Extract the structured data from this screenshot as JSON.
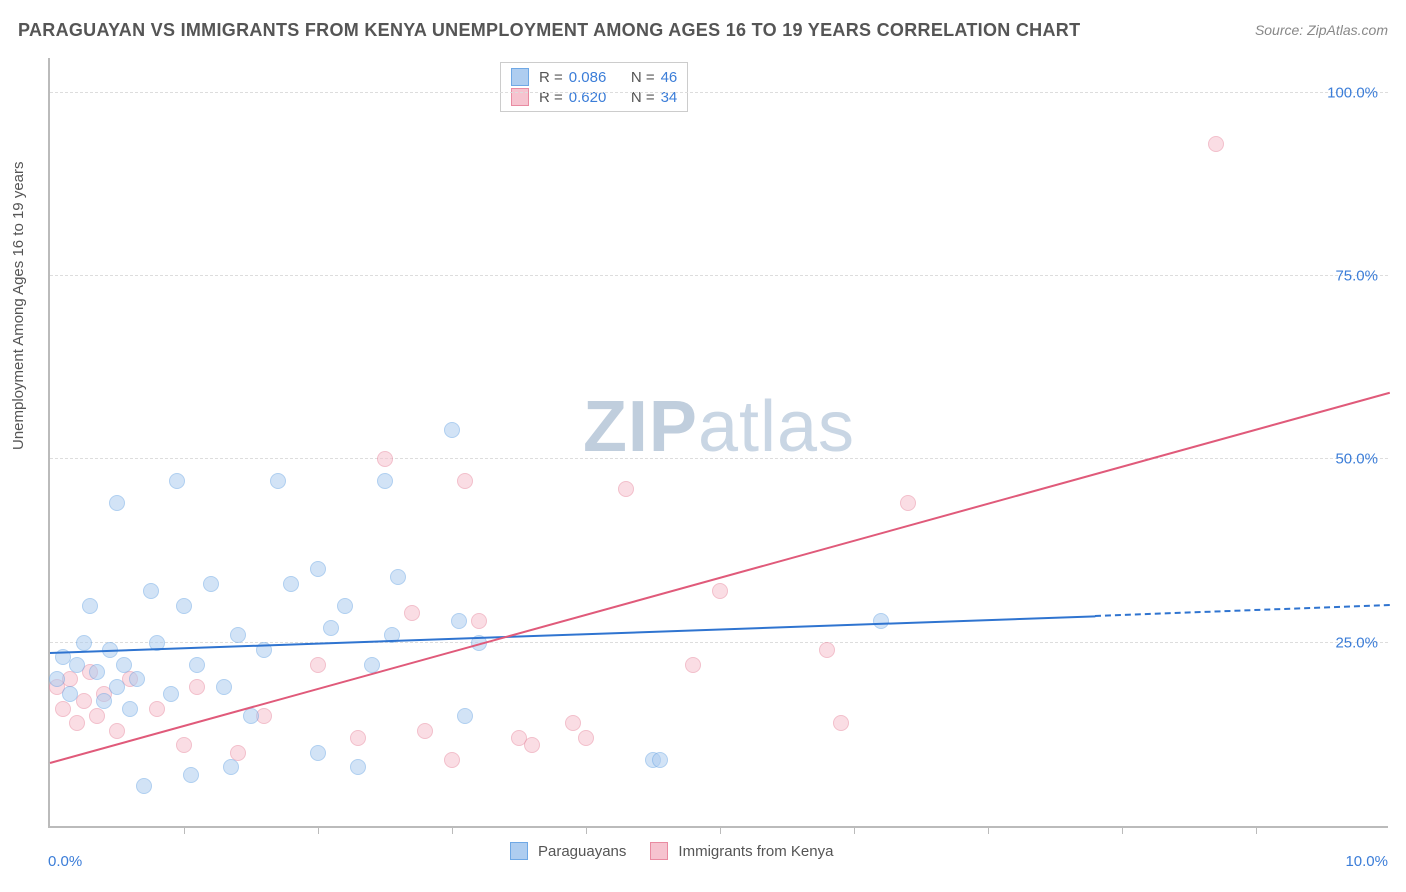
{
  "title": "PARAGUAYAN VS IMMIGRANTS FROM KENYA UNEMPLOYMENT AMONG AGES 16 TO 19 YEARS CORRELATION CHART",
  "source": "Source: ZipAtlas.com",
  "ylabel": "Unemployment Among Ages 16 to 19 years",
  "watermark_bold": "ZIP",
  "watermark_light": "atlas",
  "axes": {
    "xmin": 0,
    "xmax": 10,
    "ymin": 0,
    "ymax": 105,
    "xtick_label_min": "0.0%",
    "xtick_label_max": "10.0%",
    "yticks": [
      {
        "v": 25,
        "label": "25.0%"
      },
      {
        "v": 50,
        "label": "50.0%"
      },
      {
        "v": 75,
        "label": "75.0%"
      },
      {
        "v": 100,
        "label": "100.0%"
      }
    ],
    "xtick_positions": [
      1,
      2,
      3,
      4,
      5,
      6,
      7,
      8,
      9
    ],
    "grid_color": "#dddddd",
    "axis_color": "#bbbbbb"
  },
  "legend_top": [
    {
      "swatch_fill": "#aecdf0",
      "swatch_border": "#6fa8e5",
      "r_label": "R =",
      "r": "0.086",
      "n_label": "N =",
      "n": "46"
    },
    {
      "swatch_fill": "#f6c3cf",
      "swatch_border": "#e98ba1",
      "r_label": "R =",
      "r": "0.620",
      "n_label": "N =",
      "n": "34"
    }
  ],
  "legend_bottom": [
    {
      "swatch_fill": "#aecdf0",
      "swatch_border": "#6fa8e5",
      "label": "Paraguayans"
    },
    {
      "swatch_fill": "#f6c3cf",
      "swatch_border": "#e98ba1",
      "label": "Immigrants from Kenya"
    }
  ],
  "series": {
    "paraguayans": {
      "color_fill": "#aecdf0",
      "color_border": "#6fa8e5",
      "trend_color": "#2f74d0",
      "trend_start": {
        "x": 0.0,
        "y": 23.5
      },
      "trend_end_solid": {
        "x": 7.8,
        "y": 28.5
      },
      "trend_end_dashed": {
        "x": 10.0,
        "y": 30.0
      },
      "points": [
        {
          "x": 0.05,
          "y": 20
        },
        {
          "x": 0.1,
          "y": 23
        },
        {
          "x": 0.15,
          "y": 18
        },
        {
          "x": 0.2,
          "y": 22
        },
        {
          "x": 0.25,
          "y": 25
        },
        {
          "x": 0.3,
          "y": 30
        },
        {
          "x": 0.35,
          "y": 21
        },
        {
          "x": 0.4,
          "y": 17
        },
        {
          "x": 0.45,
          "y": 24
        },
        {
          "x": 0.5,
          "y": 19
        },
        {
          "x": 0.5,
          "y": 44
        },
        {
          "x": 0.55,
          "y": 22
        },
        {
          "x": 0.6,
          "y": 16
        },
        {
          "x": 0.65,
          "y": 20
        },
        {
          "x": 0.7,
          "y": 5.5
        },
        {
          "x": 0.75,
          "y": 32
        },
        {
          "x": 0.8,
          "y": 25
        },
        {
          "x": 0.9,
          "y": 18
        },
        {
          "x": 0.95,
          "y": 47
        },
        {
          "x": 1.0,
          "y": 30
        },
        {
          "x": 1.05,
          "y": 7
        },
        {
          "x": 1.1,
          "y": 22
        },
        {
          "x": 1.2,
          "y": 33
        },
        {
          "x": 1.3,
          "y": 19
        },
        {
          "x": 1.35,
          "y": 8
        },
        {
          "x": 1.5,
          "y": 15
        },
        {
          "x": 1.6,
          "y": 24
        },
        {
          "x": 1.7,
          "y": 47
        },
        {
          "x": 1.8,
          "y": 33
        },
        {
          "x": 2.0,
          "y": 10
        },
        {
          "x": 2.1,
          "y": 27
        },
        {
          "x": 2.2,
          "y": 30
        },
        {
          "x": 2.3,
          "y": 8
        },
        {
          "x": 2.4,
          "y": 22
        },
        {
          "x": 2.5,
          "y": 47
        },
        {
          "x": 2.55,
          "y": 26
        },
        {
          "x": 2.6,
          "y": 34
        },
        {
          "x": 3.0,
          "y": 54
        },
        {
          "x": 3.05,
          "y": 28
        },
        {
          "x": 3.1,
          "y": 15
        },
        {
          "x": 3.2,
          "y": 25
        },
        {
          "x": 4.5,
          "y": 9
        },
        {
          "x": 4.55,
          "y": 9
        },
        {
          "x": 6.2,
          "y": 28
        },
        {
          "x": 2.0,
          "y": 35
        },
        {
          "x": 1.4,
          "y": 26
        }
      ]
    },
    "kenya": {
      "color_fill": "#f6c3cf",
      "color_border": "#e98ba1",
      "trend_color": "#e05a7a",
      "trend_start": {
        "x": 0.0,
        "y": 8.5
      },
      "trend_end_solid": {
        "x": 10.0,
        "y": 59.0
      },
      "points": [
        {
          "x": 0.05,
          "y": 19
        },
        {
          "x": 0.1,
          "y": 16
        },
        {
          "x": 0.15,
          "y": 20
        },
        {
          "x": 0.2,
          "y": 14
        },
        {
          "x": 0.25,
          "y": 17
        },
        {
          "x": 0.3,
          "y": 21
        },
        {
          "x": 0.35,
          "y": 15
        },
        {
          "x": 0.4,
          "y": 18
        },
        {
          "x": 0.5,
          "y": 13
        },
        {
          "x": 0.6,
          "y": 20
        },
        {
          "x": 0.8,
          "y": 16
        },
        {
          "x": 1.0,
          "y": 11
        },
        {
          "x": 1.1,
          "y": 19
        },
        {
          "x": 1.4,
          "y": 10
        },
        {
          "x": 1.6,
          "y": 15
        },
        {
          "x": 2.0,
          "y": 22
        },
        {
          "x": 2.3,
          "y": 12
        },
        {
          "x": 2.7,
          "y": 29
        },
        {
          "x": 2.8,
          "y": 13
        },
        {
          "x": 3.0,
          "y": 9
        },
        {
          "x": 3.1,
          "y": 47
        },
        {
          "x": 3.2,
          "y": 28
        },
        {
          "x": 3.5,
          "y": 12
        },
        {
          "x": 3.6,
          "y": 11
        },
        {
          "x": 3.9,
          "y": 14
        },
        {
          "x": 4.0,
          "y": 12
        },
        {
          "x": 4.3,
          "y": 46
        },
        {
          "x": 4.8,
          "y": 22
        },
        {
          "x": 5.0,
          "y": 32
        },
        {
          "x": 5.8,
          "y": 24
        },
        {
          "x": 5.9,
          "y": 14
        },
        {
          "x": 6.4,
          "y": 44
        },
        {
          "x": 8.7,
          "y": 93
        },
        {
          "x": 2.5,
          "y": 50
        }
      ]
    }
  },
  "style": {
    "background_color": "#ffffff",
    "title_fontsize": 18,
    "title_color": "#555555",
    "tick_color": "#3b7dd8",
    "point_radius": 8
  }
}
